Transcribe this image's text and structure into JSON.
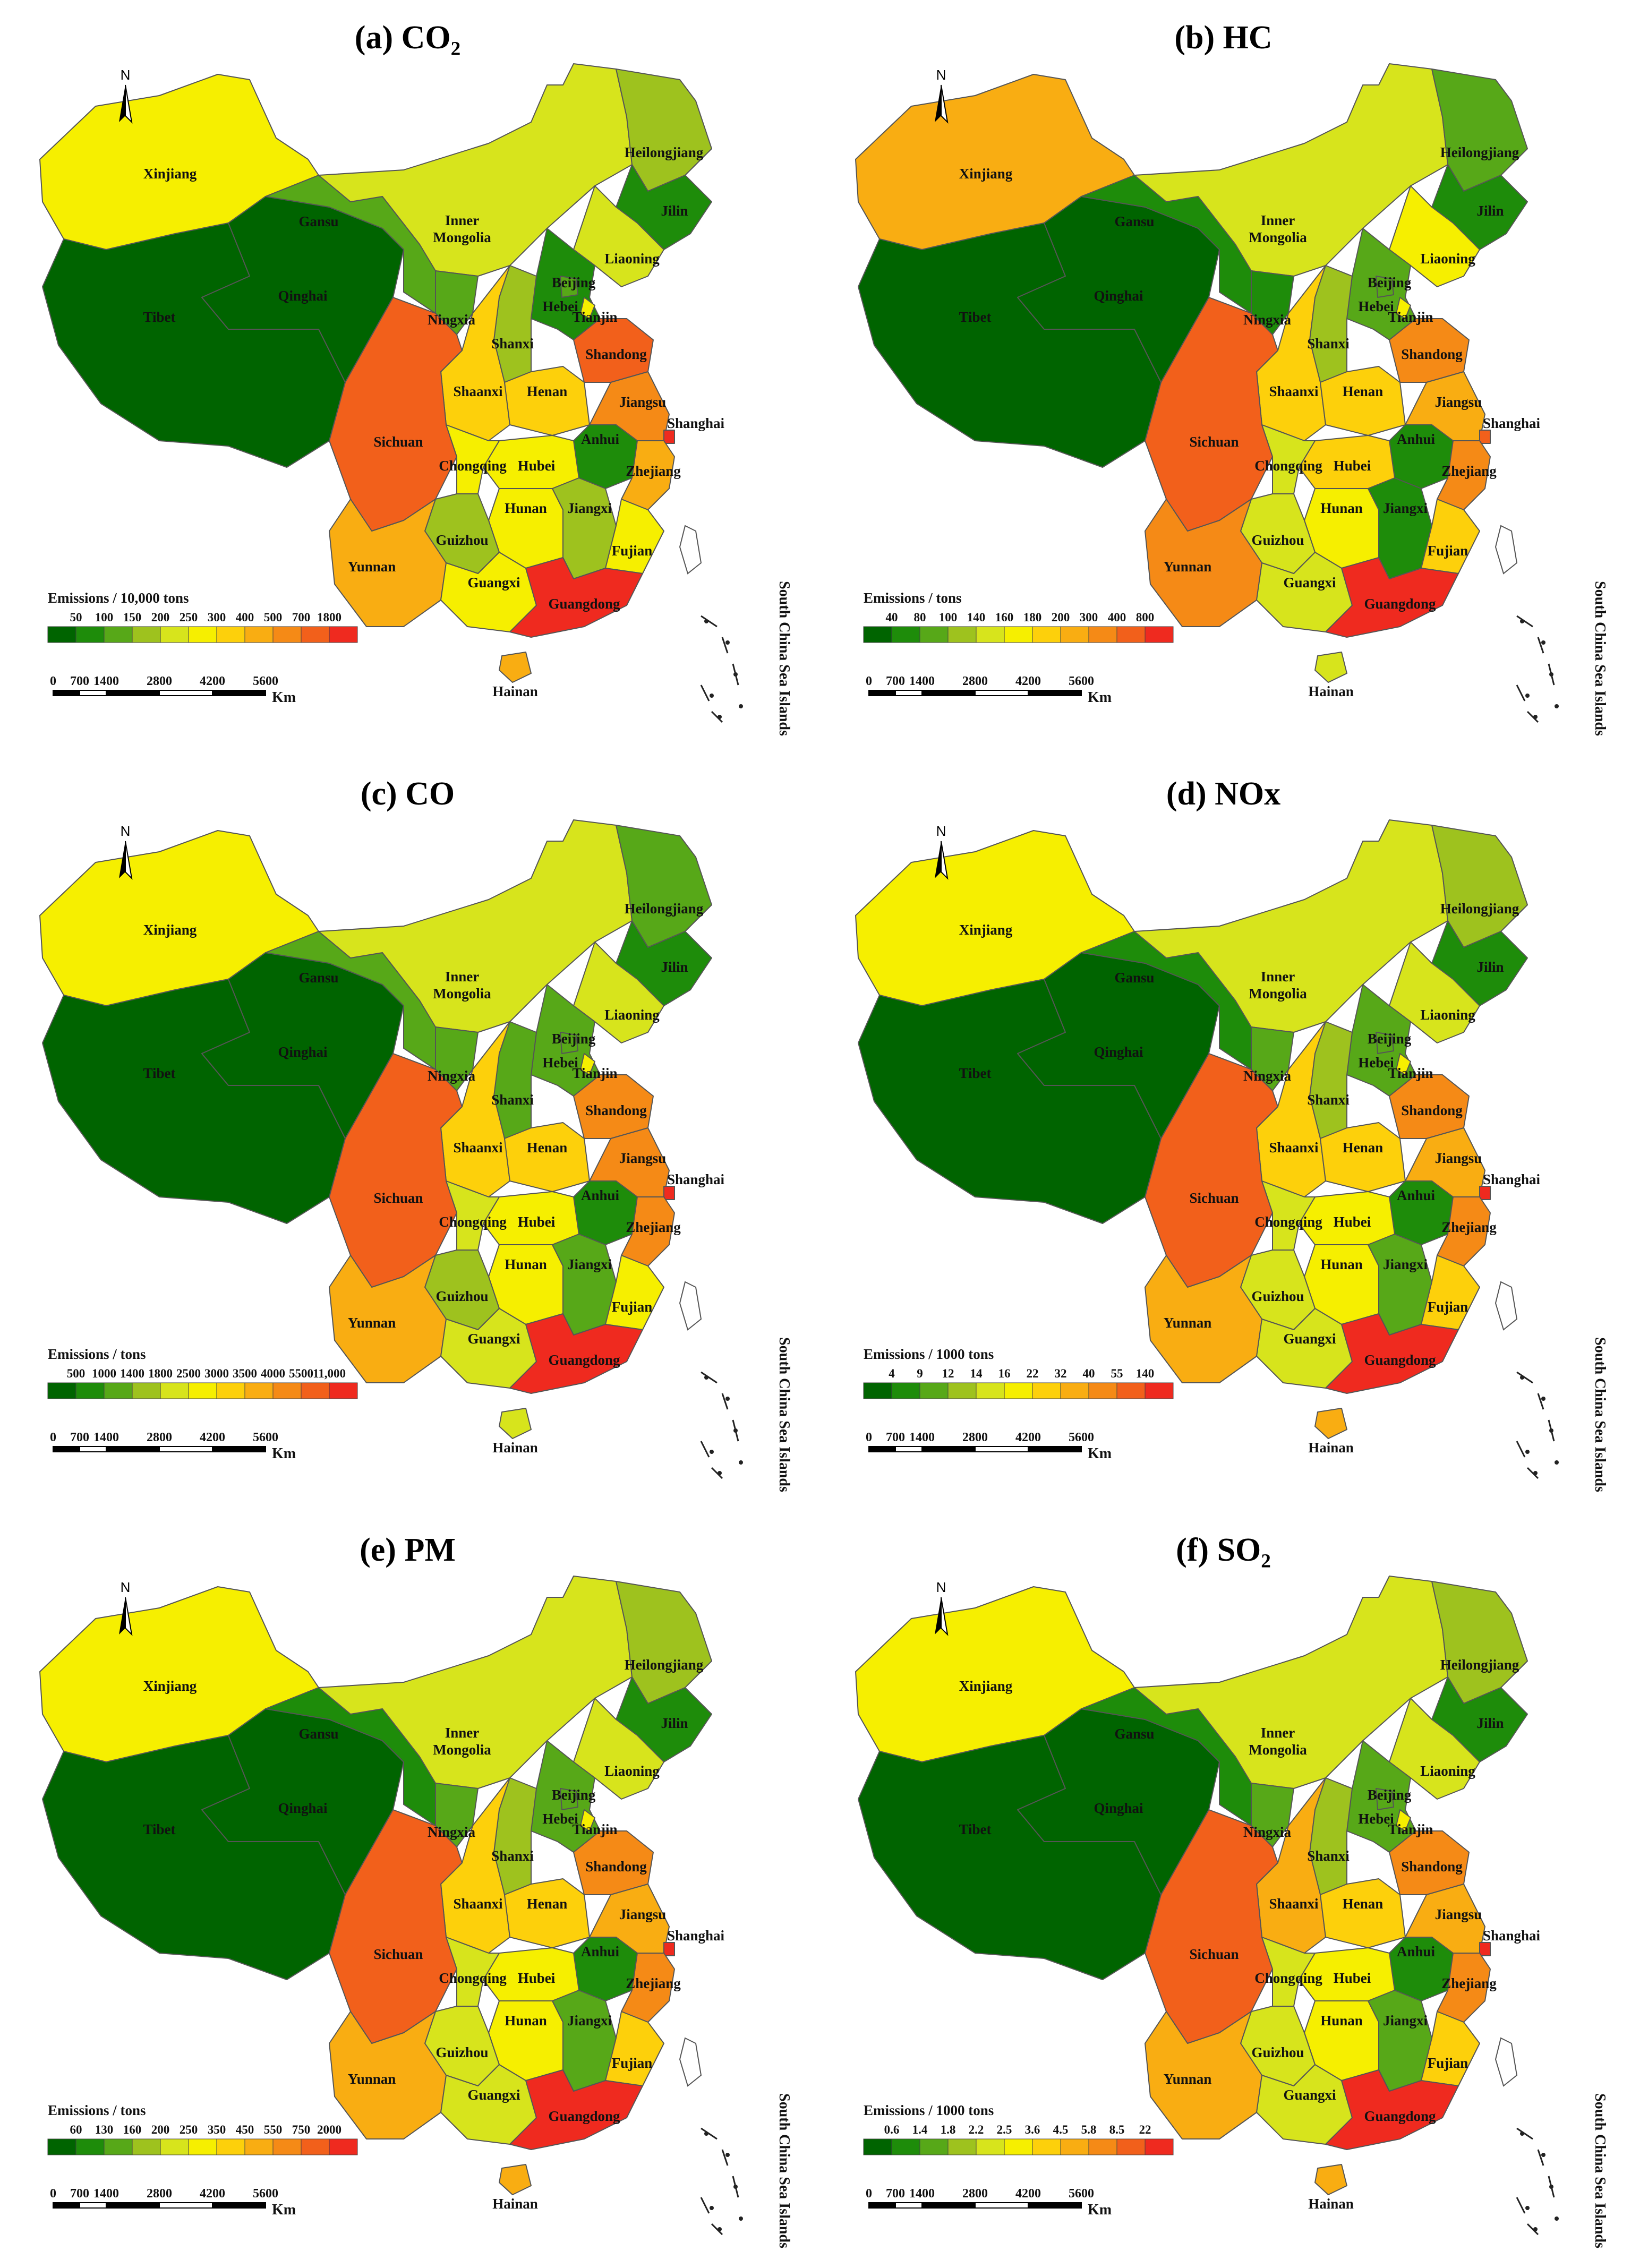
{
  "title_labels": [
    "(a) CO₂",
    "(b) HC",
    "(c) CO",
    "(d) NOx",
    "(e) PM",
    "(f) SO₂"
  ],
  "north_label": "N",
  "scs_label": "South China Sea Islands",
  "scale_km_label": "Km",
  "scale_ticks": [
    "0",
    "700",
    "1400",
    "2800",
    "4200",
    "5600"
  ],
  "color_ramp": [
    "#006400",
    "#1e8c0a",
    "#57a818",
    "#9ec21e",
    "#d7e41c",
    "#f6ef00",
    "#fdd00b",
    "#f9ad12",
    "#f58a16",
    "#f2601b",
    "#ef2a1f"
  ],
  "province_names": [
    "Xinjiang",
    "Tibet",
    "Qinghai",
    "Gansu",
    "Inner Mongolia",
    "Heilongjiang",
    "Jilin",
    "Liaoning",
    "Beijing",
    "Tianjin",
    "Hebei",
    "Shanxi",
    "Ningxia",
    "Shaanxi",
    "Henan",
    "Shandong",
    "Jiangsu",
    "Shanghai",
    "Anhui",
    "Hubei",
    "Sichuan",
    "Chongqing",
    "Hunan",
    "Jiangxi",
    "Zhejiang",
    "Fujian",
    "Guizhou",
    "Yunnan",
    "Guangxi",
    "Guangdong",
    "Hainan"
  ],
  "maps": [
    {
      "title": "(a) CO₂",
      "legend_title": "Emissions / 10,000 tons",
      "legend_breaks": [
        "50",
        "100",
        "150",
        "200",
        "250",
        "300",
        "400",
        "500",
        "700",
        "1800"
      ],
      "classes": {
        "Xinjiang": 5,
        "Tibet": 0,
        "Qinghai": 0,
        "Gansu": 2,
        "Inner Mongolia": 4,
        "Heilongjiang": 3,
        "Jilin": 1,
        "Liaoning": 4,
        "Beijing": 2,
        "Tianjin": 5,
        "Hebei": 1,
        "Shanxi": 3,
        "Ningxia": 2,
        "Shaanxi": 6,
        "Henan": 6,
        "Shandong": 9,
        "Jiangsu": 8,
        "Shanghai": 10,
        "Anhui": 1,
        "Hubei": 5,
        "Sichuan": 9,
        "Chongqing": 5,
        "Hunan": 5,
        "Jiangxi": 3,
        "Zhejiang": 7,
        "Fujian": 5,
        "Guizhou": 3,
        "Yunnan": 7,
        "Guangxi": 5,
        "Guangdong": 10,
        "Hainan": 7
      }
    },
    {
      "title": "(b) HC",
      "legend_title": "Emissions / tons",
      "legend_breaks": [
        "40",
        "80",
        "100",
        "140",
        "160",
        "180",
        "200",
        "300",
        "400",
        "800"
      ],
      "classes": {
        "Xinjiang": 7,
        "Tibet": 0,
        "Qinghai": 0,
        "Gansu": 1,
        "Inner Mongolia": 4,
        "Heilongjiang": 2,
        "Jilin": 1,
        "Liaoning": 5,
        "Beijing": 2,
        "Tianjin": 5,
        "Hebei": 2,
        "Shanxi": 3,
        "Ningxia": 1,
        "Shaanxi": 6,
        "Henan": 6,
        "Shandong": 8,
        "Jiangsu": 7,
        "Shanghai": 9,
        "Anhui": 1,
        "Hubei": 6,
        "Sichuan": 9,
        "Chongqing": 4,
        "Hunan": 5,
        "Jiangxi": 1,
        "Zhejiang": 8,
        "Fujian": 6,
        "Guizhou": 4,
        "Yunnan": 8,
        "Guangxi": 4,
        "Guangdong": 10,
        "Hainan": 4
      }
    },
    {
      "title": "(c) CO",
      "legend_title": "Emissions / tons",
      "legend_breaks": [
        "500",
        "1000",
        "1400",
        "1800",
        "2500",
        "3000",
        "3500",
        "4000",
        "5500",
        "11,000"
      ],
      "classes": {
        "Xinjiang": 5,
        "Tibet": 0,
        "Qinghai": 0,
        "Gansu": 2,
        "Inner Mongolia": 4,
        "Heilongjiang": 2,
        "Jilin": 1,
        "Liaoning": 4,
        "Beijing": 2,
        "Tianjin": 5,
        "Hebei": 2,
        "Shanxi": 2,
        "Ningxia": 2,
        "Shaanxi": 6,
        "Henan": 6,
        "Shandong": 8,
        "Jiangsu": 8,
        "Shanghai": 10,
        "Anhui": 1,
        "Hubei": 5,
        "Sichuan": 9,
        "Chongqing": 4,
        "Hunan": 5,
        "Jiangxi": 2,
        "Zhejiang": 8,
        "Fujian": 5,
        "Guizhou": 3,
        "Yunnan": 7,
        "Guangxi": 4,
        "Guangdong": 10,
        "Hainan": 4
      }
    },
    {
      "title": "(d) NOx",
      "legend_title": "Emissions / 1000 tons",
      "legend_breaks": [
        "4",
        "9",
        "12",
        "14",
        "16",
        "22",
        "32",
        "40",
        "55",
        "140"
      ],
      "classes": {
        "Xinjiang": 5,
        "Tibet": 0,
        "Qinghai": 0,
        "Gansu": 1,
        "Inner Mongolia": 4,
        "Heilongjiang": 3,
        "Jilin": 1,
        "Liaoning": 4,
        "Beijing": 2,
        "Tianjin": 5,
        "Hebei": 2,
        "Shanxi": 3,
        "Ningxia": 2,
        "Shaanxi": 6,
        "Henan": 6,
        "Shandong": 8,
        "Jiangsu": 7,
        "Shanghai": 10,
        "Anhui": 1,
        "Hubei": 5,
        "Sichuan": 9,
        "Chongqing": 4,
        "Hunan": 5,
        "Jiangxi": 2,
        "Zhejiang": 8,
        "Fujian": 6,
        "Guizhou": 4,
        "Yunnan": 7,
        "Guangxi": 4,
        "Guangdong": 10,
        "Hainan": 7
      }
    },
    {
      "title": "(e) PM",
      "legend_title": "Emissions / tons",
      "legend_breaks": [
        "60",
        "130",
        "160",
        "200",
        "250",
        "350",
        "450",
        "550",
        "750",
        "2000"
      ],
      "classes": {
        "Xinjiang": 5,
        "Tibet": 0,
        "Qinghai": 0,
        "Gansu": 1,
        "Inner Mongolia": 4,
        "Heilongjiang": 3,
        "Jilin": 1,
        "Liaoning": 4,
        "Beijing": 2,
        "Tianjin": 5,
        "Hebei": 2,
        "Shanxi": 3,
        "Ningxia": 2,
        "Shaanxi": 6,
        "Henan": 6,
        "Shandong": 8,
        "Jiangsu": 7,
        "Shanghai": 10,
        "Anhui": 1,
        "Hubei": 5,
        "Sichuan": 9,
        "Chongqing": 4,
        "Hunan": 5,
        "Jiangxi": 2,
        "Zhejiang": 8,
        "Fujian": 6,
        "Guizhou": 4,
        "Yunnan": 7,
        "Guangxi": 4,
        "Guangdong": 10,
        "Hainan": 7
      }
    },
    {
      "title": "(f) SO₂",
      "legend_title": "Emissions / 1000 tons",
      "legend_breaks": [
        "0.6",
        "1.4",
        "1.8",
        "2.2",
        "2.5",
        "3.6",
        "4.5",
        "5.8",
        "8.5",
        "22"
      ],
      "classes": {
        "Xinjiang": 5,
        "Tibet": 0,
        "Qinghai": 0,
        "Gansu": 1,
        "Inner Mongolia": 4,
        "Heilongjiang": 3,
        "Jilin": 1,
        "Liaoning": 4,
        "Beijing": 2,
        "Tianjin": 5,
        "Hebei": 2,
        "Shanxi": 3,
        "Ningxia": 2,
        "Shaanxi": 7,
        "Henan": 6,
        "Shandong": 8,
        "Jiangsu": 7,
        "Shanghai": 10,
        "Anhui": 1,
        "Hubei": 5,
        "Sichuan": 9,
        "Chongqing": 4,
        "Hunan": 5,
        "Jiangxi": 2,
        "Zhejiang": 8,
        "Fujian": 6,
        "Guizhou": 4,
        "Yunnan": 7,
        "Guangxi": 4,
        "Guangdong": 10,
        "Hainan": 7
      }
    }
  ]
}
